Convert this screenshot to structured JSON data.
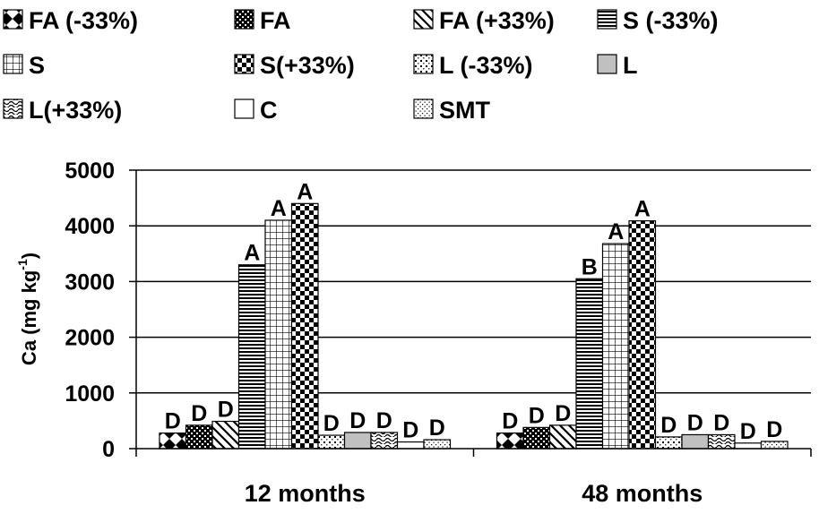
{
  "chart_data": {
    "type": "bar",
    "categories": [
      "12 months",
      "48 months"
    ],
    "ylabel": "Ca (mg kg",
    "ylabel_sup": "-1",
    "ylabel_close": ")",
    "ylim": [
      0,
      5000
    ],
    "yticks": [
      0,
      1000,
      2000,
      3000,
      4000,
      5000
    ],
    "grid": true,
    "legend_position": "top",
    "series": [
      {
        "name": "FA (-33%)",
        "pattern": "diamonds",
        "values": [
          280,
          280
        ],
        "letters": [
          "D",
          "D"
        ]
      },
      {
        "name": "FA",
        "pattern": "dense-check",
        "values": [
          420,
          380
        ],
        "letters": [
          "D",
          "D"
        ]
      },
      {
        "name": "FA (+33%)",
        "pattern": "diag-wide",
        "values": [
          490,
          420
        ],
        "letters": [
          "D",
          "D"
        ]
      },
      {
        "name": "S (-33%)",
        "pattern": "horizontal",
        "values": [
          3300,
          3050
        ],
        "letters": [
          "A",
          "B"
        ]
      },
      {
        "name": "S",
        "pattern": "grid",
        "values": [
          4100,
          3680
        ],
        "letters": [
          "A",
          "A"
        ]
      },
      {
        "name": "S(+33%)",
        "pattern": "checker",
        "values": [
          4400,
          4090
        ],
        "letters": [
          "A",
          "A"
        ]
      },
      {
        "name": "L (-33%)",
        "pattern": "dots",
        "values": [
          240,
          210
        ],
        "letters": [
          "D",
          "D"
        ]
      },
      {
        "name": "L",
        "pattern": "solid-gray",
        "values": [
          290,
          250
        ],
        "letters": [
          "D",
          "D"
        ]
      },
      {
        "name": "L(+33%)",
        "pattern": "waves",
        "values": [
          290,
          250
        ],
        "letters": [
          "D",
          "D"
        ]
      },
      {
        "name": "C",
        "pattern": "white",
        "values": [
          120,
          100
        ],
        "letters": [
          "D",
          "D"
        ]
      },
      {
        "name": "SMT",
        "pattern": "fine-dots",
        "values": [
          160,
          130
        ],
        "letters": [
          "D",
          "D"
        ]
      }
    ]
  }
}
